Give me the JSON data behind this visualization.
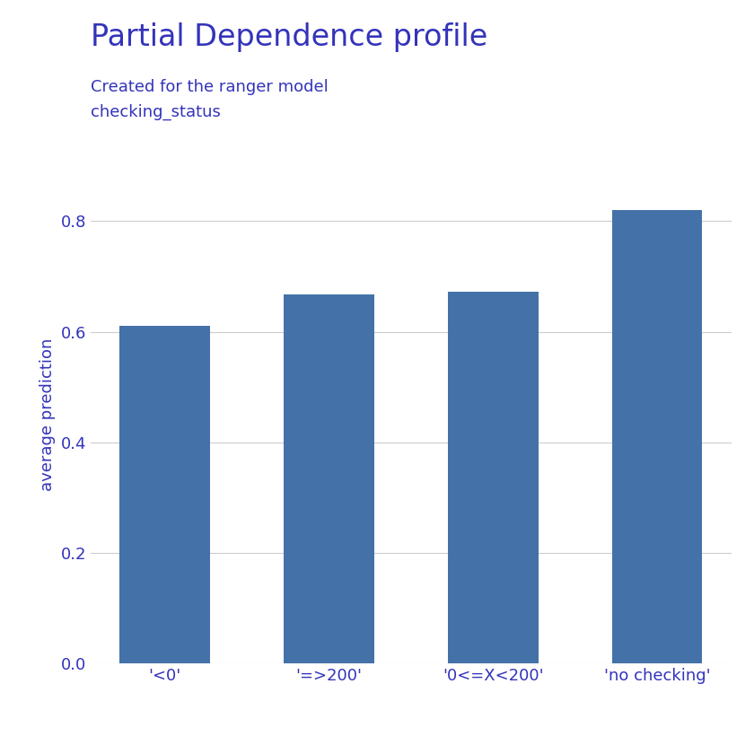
{
  "categories": [
    "'<0'",
    "'=>200'",
    "'0<=X<200'",
    "'no checking'"
  ],
  "values": [
    0.611,
    0.668,
    0.672,
    0.82
  ],
  "bar_color": "#4472a8",
  "title": "Partial Dependence profile",
  "subtitle_line1": "Created for the ranger model",
  "subtitle_line2": "checking_status",
  "ylabel": "average prediction",
  "ylim": [
    0,
    0.9
  ],
  "yticks": [
    0.0,
    0.2,
    0.4,
    0.6,
    0.8
  ],
  "title_color": "#3333bb",
  "ylabel_color": "#3333bb",
  "xtick_color": "#3333bb",
  "ytick_color": "#3333bb",
  "subtitle_color": "#3333bb",
  "background_color": "#ffffff",
  "grid_color": "#cccccc",
  "title_fontsize": 24,
  "subtitle_fontsize": 13,
  "ylabel_fontsize": 13,
  "tick_fontsize": 13,
  "bar_width": 0.55
}
